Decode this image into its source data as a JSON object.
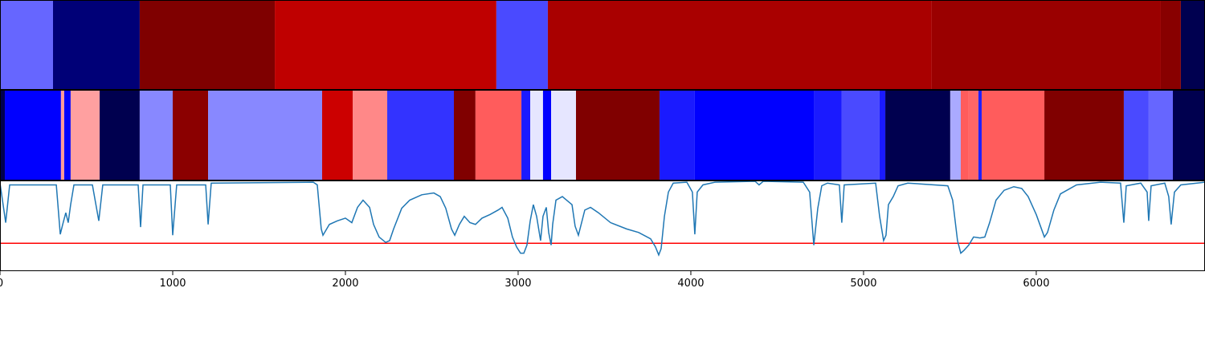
{
  "chart_data": [
    {
      "type": "segments",
      "x": [
        0,
        307,
        809,
        1591,
        2874,
        3172,
        5395,
        6721,
        6837,
        6977
      ],
      "colors": [
        "#6666ff",
        "#000077",
        "#7f0000",
        "#bf0000",
        "#4a4aff",
        "#a90000",
        "#9a0000",
        "#880000",
        "#000050"
      ],
      "xlim": [
        0,
        6977
      ]
    },
    {
      "type": "segments",
      "x": [
        0,
        28,
        353,
        372,
        409,
        577,
        809,
        1000,
        1205,
        1865,
        2042,
        2242,
        2628,
        2753,
        3019,
        3070,
        3144,
        3191,
        3335,
        3819,
        4023,
        4712,
        4874,
        5093,
        5126,
        5502,
        5563,
        5605,
        5665,
        5684,
        6047,
        6507,
        6651,
        6791,
        6977
      ],
      "colors": [
        "#00004f",
        "#0000ff",
        "#ff9999",
        "#0000ff",
        "#ffa0a0",
        "#00004f",
        "#8888ff",
        "#8b0000",
        "#8888ff",
        "#cc0000",
        "#ff8888",
        "#3333ff",
        "#800000",
        "#ff5c5c",
        "#1a1aff",
        "#e6e6ff",
        "#0000ff",
        "#e6e6ff",
        "#800000",
        "#1a1aff",
        "#0000ff",
        "#1a1aff",
        "#4a4aff",
        "#1a1aff",
        "#00004f",
        "#aaaaff",
        "#ff5c5c",
        "#ff6666",
        "#2020ff",
        "#ff5c5c",
        "#800000",
        "#4a4aff",
        "#6666ff",
        "#00004f"
      ],
      "xlim": [
        0,
        6977
      ]
    },
    {
      "type": "line",
      "x": [
        0,
        33,
        56,
        326,
        349,
        363,
        381,
        395,
        409,
        428,
        535,
        572,
        595,
        800,
        814,
        828,
        986,
        1000,
        1023,
        1191,
        1205,
        1223,
        1814,
        1837,
        1860,
        1870,
        1907,
        1953,
        2000,
        2037,
        2070,
        2102,
        2140,
        2163,
        2195,
        2233,
        2256,
        2279,
        2326,
        2372,
        2442,
        2512,
        2549,
        2581,
        2614,
        2633,
        2660,
        2688,
        2721,
        2753,
        2791,
        2837,
        2884,
        2907,
        2940,
        2967,
        2991,
        3014,
        3033,
        3051,
        3070,
        3088,
        3107,
        3130,
        3144,
        3163,
        3177,
        3191,
        3200,
        3219,
        3256,
        3312,
        3330,
        3349,
        3386,
        3419,
        3465,
        3535,
        3628,
        3698,
        3767,
        3795,
        3814,
        3828,
        3847,
        3870,
        3898,
        3977,
        4009,
        4023,
        4037,
        4070,
        4140,
        4372,
        4395,
        4419,
        4651,
        4688,
        4712,
        4735,
        4758,
        4791,
        4860,
        4874,
        4888,
        5070,
        5093,
        5116,
        5130,
        5144,
        5172,
        5200,
        5256,
        5488,
        5516,
        5544,
        5563,
        5581,
        5609,
        5637,
        5674,
        5702,
        5730,
        5767,
        5814,
        5870,
        5916,
        5953,
        6000,
        6047,
        6065,
        6102,
        6140,
        6233,
        6372,
        6488,
        6507,
        6521,
        6605,
        6642,
        6651,
        6665,
        6744,
        6767,
        6781,
        6800,
        6837,
        6977
      ],
      "series": [
        {
          "color": "#1f77b4",
          "values": [
            0.98,
            0.54,
            0.96,
            0.96,
            0.41,
            0.52,
            0.65,
            0.54,
            0.74,
            0.96,
            0.96,
            0.56,
            0.96,
            0.96,
            0.49,
            0.96,
            0.96,
            0.4,
            0.96,
            0.96,
            0.52,
            0.98,
            0.99,
            0.96,
            0.47,
            0.4,
            0.52,
            0.56,
            0.59,
            0.54,
            0.71,
            0.79,
            0.71,
            0.52,
            0.38,
            0.32,
            0.34,
            0.47,
            0.7,
            0.79,
            0.85,
            0.87,
            0.83,
            0.7,
            0.47,
            0.4,
            0.52,
            0.61,
            0.54,
            0.52,
            0.59,
            0.63,
            0.68,
            0.71,
            0.59,
            0.38,
            0.27,
            0.2,
            0.2,
            0.29,
            0.56,
            0.74,
            0.61,
            0.34,
            0.61,
            0.71,
            0.43,
            0.29,
            0.52,
            0.79,
            0.83,
            0.74,
            0.5,
            0.4,
            0.68,
            0.71,
            0.65,
            0.54,
            0.47,
            0.43,
            0.36,
            0.27,
            0.18,
            0.25,
            0.61,
            0.88,
            0.98,
            0.99,
            0.88,
            0.41,
            0.88,
            0.96,
            0.99,
            1.0,
            0.96,
            1.0,
            0.99,
            0.88,
            0.29,
            0.7,
            0.95,
            0.98,
            0.96,
            0.54,
            0.96,
            0.98,
            0.61,
            0.34,
            0.4,
            0.74,
            0.83,
            0.95,
            0.98,
            0.95,
            0.79,
            0.34,
            0.2,
            0.23,
            0.29,
            0.38,
            0.37,
            0.38,
            0.54,
            0.79,
            0.9,
            0.94,
            0.92,
            0.83,
            0.63,
            0.38,
            0.43,
            0.68,
            0.86,
            0.96,
            0.99,
            0.98,
            0.54,
            0.95,
            0.98,
            0.88,
            0.56,
            0.95,
            0.98,
            0.83,
            0.52,
            0.88,
            0.96,
            0.99
          ]
        }
      ],
      "threshold": 0.31,
      "threshold_color": "#ff0000",
      "xlim": [
        0,
        6977
      ],
      "ylim": [
        0,
        1
      ],
      "xticks": [
        0,
        1000,
        2000,
        3000,
        4000,
        5000,
        6000
      ]
    }
  ]
}
